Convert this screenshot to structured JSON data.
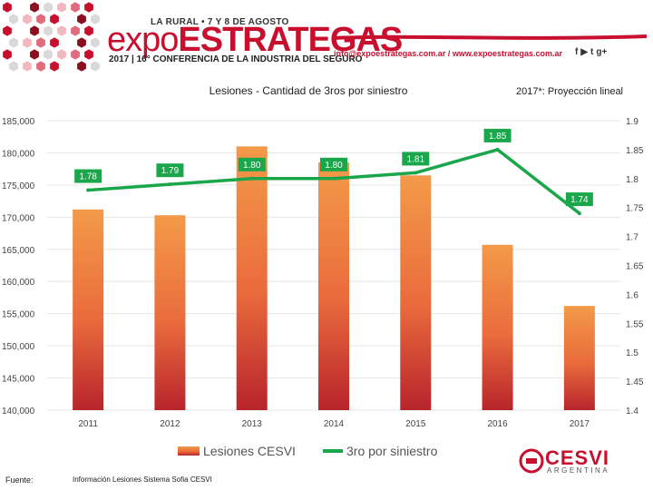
{
  "header": {
    "event_tag": "LA RURAL • 7 Y 8 DE AGOSTO",
    "brand_left": "expo",
    "brand_right": "ESTRATEGAS",
    "subtitle": "2017 | 16° CONFERENCIA DE LA INDUSTRIA DEL SEGURO",
    "contact": "info@expoestrategas.com.ar / www.expoestrategas.com.ar",
    "social_icons": [
      "facebook-icon",
      "youtube-icon",
      "twitter-icon",
      "google-plus-icon"
    ],
    "social_glyphs": [
      "f",
      "▶",
      "t",
      "g+"
    ],
    "accent_color": "#c8102e"
  },
  "chart_data": {
    "type": "bar",
    "title": "Lesiones - Cantidad de 3ros por siniestro",
    "projection_note": "2017*: Proyección lineal",
    "categories": [
      "2011",
      "2012",
      "2013",
      "2014",
      "2015",
      "2016",
      "2017"
    ],
    "series": [
      {
        "name": "Lesiones CESVI",
        "type": "bar",
        "axis": "left",
        "color": "#f0913e",
        "values": [
          171200,
          170300,
          181000,
          178500,
          176500,
          165700,
          156200
        ]
      },
      {
        "name": "3ro por siniestro",
        "type": "line",
        "axis": "right",
        "color": "#1aa64b",
        "values": [
          1.78,
          1.79,
          1.8,
          1.8,
          1.81,
          1.85,
          1.74
        ],
        "labels": [
          "1.78",
          "1.79",
          "1.80",
          "1.80",
          "1.81",
          "1.85",
          "1.74"
        ]
      }
    ],
    "left_axis": {
      "min": 140000,
      "max": 185000,
      "step": 5000,
      "tick_labels": [
        "140,000",
        "145,000",
        "150,000",
        "155,000",
        "160,000",
        "165,000",
        "170,000",
        "175,000",
        "180,000",
        "185,000"
      ]
    },
    "right_axis": {
      "min": 1.4,
      "max": 1.9,
      "step": 0.05,
      "tick_labels": [
        "1.4",
        "1.45",
        "1.5",
        "1.55",
        "1.6",
        "1.65",
        "1.7",
        "1.75",
        "1.8",
        "1.85",
        "1.9"
      ]
    },
    "legend_position": "bottom-center",
    "grid": true
  },
  "footer": {
    "label": "Fuente:",
    "text": "Información Lesiones  Sistema Sofia CESVI",
    "logo_name": "CESVI",
    "logo_sub": "ARGENTINA"
  }
}
